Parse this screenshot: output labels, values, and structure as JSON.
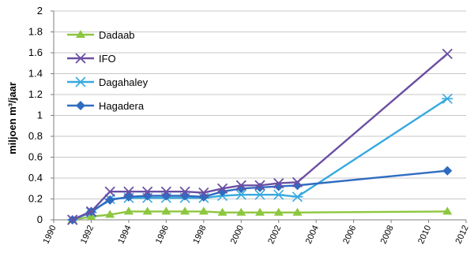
{
  "chart_data": {
    "type": "line",
    "title": "",
    "xlabel": "",
    "ylabel": "miljoen m³/jaar",
    "xlim": [
      1990,
      2012
    ],
    "ylim": [
      0,
      2
    ],
    "x_ticks": [
      "1990",
      "1992",
      "1994",
      "1996",
      "1998",
      "2000",
      "2002",
      "2004",
      "2006",
      "2008",
      "2010",
      "2012"
    ],
    "y_ticks": [
      "0",
      "0.2",
      "0.4",
      "0.6",
      "0.8",
      "1",
      "1.2",
      "1.4",
      "1.6",
      "1.8",
      "2"
    ],
    "grid": true,
    "legend_position": "top-left",
    "series": [
      {
        "name": "Dadaab",
        "color": "#8dc63f",
        "marker": "triangle",
        "x": [
          1991,
          1992,
          1993,
          1994,
          1995,
          1996,
          1997,
          1998,
          1999,
          2000,
          2001,
          2002,
          2003,
          2011
        ],
        "y": [
          0,
          0.03,
          0.05,
          0.08,
          0.08,
          0.08,
          0.08,
          0.08,
          0.07,
          0.07,
          0.07,
          0.07,
          0.07,
          0.08
        ]
      },
      {
        "name": "IFO",
        "color": "#6b4fa3",
        "marker": "x",
        "x": [
          1991,
          1992,
          1993,
          1994,
          1995,
          1996,
          1997,
          1998,
          1999,
          2000,
          2001,
          2002,
          2003,
          2011
        ],
        "y": [
          0,
          0.08,
          0.27,
          0.27,
          0.27,
          0.27,
          0.27,
          0.26,
          0.3,
          0.33,
          0.33,
          0.35,
          0.36,
          1.59
        ]
      },
      {
        "name": "Dagahaley",
        "color": "#37a9df",
        "marker": "star",
        "x": [
          1991,
          1992,
          1993,
          1994,
          1995,
          1996,
          1997,
          1998,
          1999,
          2000,
          2001,
          2002,
          2003,
          2011
        ],
        "y": [
          0,
          0.07,
          0.2,
          0.21,
          0.21,
          0.21,
          0.21,
          0.21,
          0.23,
          0.24,
          0.24,
          0.24,
          0.22,
          1.16
        ]
      },
      {
        "name": "Hagadera",
        "color": "#2f6cc0",
        "marker": "diamond",
        "x": [
          1991,
          1992,
          1993,
          1994,
          1995,
          1996,
          1997,
          1998,
          1999,
          2000,
          2001,
          2002,
          2003,
          2011
        ],
        "y": [
          0,
          0.08,
          0.19,
          0.22,
          0.23,
          0.23,
          0.23,
          0.22,
          0.27,
          0.3,
          0.31,
          0.32,
          0.33,
          0.47
        ]
      }
    ]
  }
}
